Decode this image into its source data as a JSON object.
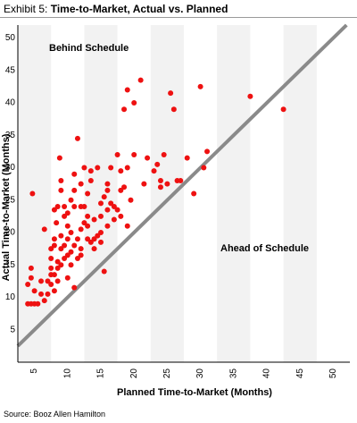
{
  "header": {
    "exhibit_label": "Exhibit 5:",
    "title": "Time-to-Market, Actual vs. Planned"
  },
  "footer": {
    "source": "Source: Booz Allen Hamilton"
  },
  "chart_data": {
    "type": "scatter",
    "title": "Time-to-Market, Actual vs. Planned",
    "xlabel": "Planned Time-to-Market (Months)",
    "ylabel": "Actual Time-to-Market (Months)",
    "xlim": [
      2.5,
      52.5
    ],
    "ylim": [
      0,
      52
    ],
    "x_ticks": [
      5,
      10,
      15,
      20,
      25,
      30,
      35,
      40,
      45,
      50
    ],
    "y_ticks": [
      5,
      10,
      15,
      20,
      25,
      30,
      35,
      40,
      45,
      50
    ],
    "grid": false,
    "background": "vertical stripes",
    "annotations": [
      "Behind Schedule",
      "Ahead of Schedule"
    ],
    "reference_line": "y = x",
    "colors": {
      "points": "#ee1111",
      "diagonal": "#8a8a8a",
      "stripe": "#f2f2f2"
    },
    "series": [
      {
        "points": [
          [
            4.0,
            9.0
          ],
          [
            4.0,
            12.0
          ],
          [
            4.5,
            9.0
          ],
          [
            4.5,
            13.0
          ],
          [
            4.5,
            14.5
          ],
          [
            4.7,
            26.0
          ],
          [
            5.0,
            9.0
          ],
          [
            5.0,
            11.0
          ],
          [
            5.5,
            9.0
          ],
          [
            6.0,
            10.5
          ],
          [
            6.0,
            12.5
          ],
          [
            6.5,
            9.5
          ],
          [
            6.5,
            20.5
          ],
          [
            7.0,
            10.5
          ],
          [
            7.0,
            12.5
          ],
          [
            7.5,
            12.0
          ],
          [
            7.5,
            13.5
          ],
          [
            7.5,
            14.5
          ],
          [
            7.5,
            16.0
          ],
          [
            7.5,
            17.5
          ],
          [
            8.0,
            11.0
          ],
          [
            8.0,
            13.5
          ],
          [
            8.0,
            18.0
          ],
          [
            8.0,
            19.0
          ],
          [
            8.0,
            23.5
          ],
          [
            8.3,
            21.5
          ],
          [
            8.5,
            12.5
          ],
          [
            8.5,
            14.5
          ],
          [
            8.5,
            15.5
          ],
          [
            8.5,
            24.0
          ],
          [
            8.8,
            31.5
          ],
          [
            9.0,
            15.0
          ],
          [
            9.0,
            17.5
          ],
          [
            9.0,
            19.5
          ],
          [
            9.0,
            26.5
          ],
          [
            9.0,
            28.0
          ],
          [
            9.5,
            16.0
          ],
          [
            9.5,
            18.0
          ],
          [
            9.5,
            22.5
          ],
          [
            9.5,
            24.0
          ],
          [
            10.0,
            13.0
          ],
          [
            10.0,
            16.5
          ],
          [
            10.0,
            19.0
          ],
          [
            10.0,
            21.0
          ],
          [
            10.0,
            23.0
          ],
          [
            10.5,
            15.0
          ],
          [
            10.5,
            17.0
          ],
          [
            10.5,
            20.0
          ],
          [
            10.5,
            25.0
          ],
          [
            11.0,
            11.5
          ],
          [
            11.0,
            18.0
          ],
          [
            11.0,
            24.0
          ],
          [
            11.0,
            26.5
          ],
          [
            11.0,
            29.0
          ],
          [
            11.5,
            16.0
          ],
          [
            11.5,
            19.0
          ],
          [
            11.5,
            34.5
          ],
          [
            12.0,
            16.5
          ],
          [
            12.0,
            17.5
          ],
          [
            12.0,
            20.5
          ],
          [
            12.0,
            24.0
          ],
          [
            12.0,
            27.5
          ],
          [
            12.5,
            21.5
          ],
          [
            12.5,
            24.0
          ],
          [
            12.5,
            30.0
          ],
          [
            13.0,
            19.0
          ],
          [
            13.0,
            21.0
          ],
          [
            13.0,
            22.5
          ],
          [
            13.0,
            26.0
          ],
          [
            13.5,
            18.5
          ],
          [
            13.5,
            28.0
          ],
          [
            13.5,
            29.5
          ],
          [
            14.0,
            17.5
          ],
          [
            14.0,
            19.0
          ],
          [
            14.0,
            22.0
          ],
          [
            14.5,
            19.5
          ],
          [
            14.5,
            30.0
          ],
          [
            15.0,
            18.5
          ],
          [
            15.0,
            20.0
          ],
          [
            15.0,
            22.5
          ],
          [
            15.0,
            24.5
          ],
          [
            15.5,
            14.0
          ],
          [
            15.5,
            25.5
          ],
          [
            16.0,
            21.0
          ],
          [
            16.0,
            23.5
          ],
          [
            16.0,
            26.5
          ],
          [
            16.0,
            27.5
          ],
          [
            16.5,
            24.5
          ],
          [
            16.5,
            30.0
          ],
          [
            17.0,
            22.0
          ],
          [
            17.0,
            24.0
          ],
          [
            17.5,
            23.5
          ],
          [
            17.5,
            32.0
          ],
          [
            18.0,
            22.5
          ],
          [
            18.0,
            26.5
          ],
          [
            18.0,
            29.5
          ],
          [
            18.5,
            27.0
          ],
          [
            18.5,
            39.0
          ],
          [
            19.0,
            21.0
          ],
          [
            19.0,
            30.0
          ],
          [
            19.0,
            42.0
          ],
          [
            19.5,
            25.0
          ],
          [
            20.0,
            32.0
          ],
          [
            20.0,
            40.0
          ],
          [
            21.0,
            43.5
          ],
          [
            21.5,
            27.5
          ],
          [
            22.0,
            31.5
          ],
          [
            23.0,
            29.5
          ],
          [
            23.5,
            30.5
          ],
          [
            24.0,
            27.0
          ],
          [
            24.0,
            28.0
          ],
          [
            24.5,
            32.0
          ],
          [
            25.0,
            27.5
          ],
          [
            25.5,
            41.5
          ],
          [
            26.0,
            39.0
          ],
          [
            26.5,
            28.0
          ],
          [
            27.0,
            28.0
          ],
          [
            28.0,
            31.5
          ],
          [
            29.0,
            26.0
          ],
          [
            30.0,
            42.5
          ],
          [
            30.5,
            30.0
          ],
          [
            31.0,
            32.5
          ],
          [
            37.5,
            41.0
          ],
          [
            42.5,
            39.0
          ]
        ]
      }
    ]
  }
}
